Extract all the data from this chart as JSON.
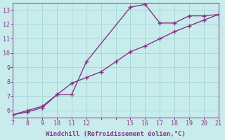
{
  "line1_x": [
    7,
    8,
    9,
    10,
    11,
    12,
    15,
    16,
    17,
    18,
    19,
    20,
    21
  ],
  "line1_y": [
    5.7,
    6.0,
    6.3,
    7.1,
    7.1,
    9.4,
    13.2,
    13.4,
    12.1,
    12.1,
    12.6,
    12.6,
    12.7
  ],
  "line2_x": [
    7,
    8,
    9,
    10,
    11,
    12,
    13,
    14,
    15,
    16,
    17,
    18,
    19,
    20,
    21
  ],
  "line2_y": [
    5.7,
    5.9,
    6.2,
    7.1,
    7.9,
    8.3,
    8.7,
    9.4,
    10.1,
    10.5,
    11.0,
    11.5,
    11.9,
    12.3,
    12.7
  ],
  "line_color": "#883388",
  "background_color": "#c8ecec",
  "grid_color": "#a8d8d8",
  "xlabel": "Windchill (Refroidissement éolien,°C)",
  "xlabel_color": "#883388",
  "tick_color": "#883388",
  "xlim": [
    7,
    21
  ],
  "ylim": [
    5.5,
    13.5
  ],
  "xticks_minor": [
    7,
    8,
    9,
    10,
    11,
    12,
    13,
    14,
    15,
    16,
    17,
    18,
    19,
    20,
    21
  ],
  "xticks_label": [
    7,
    8,
    9,
    10,
    11,
    12,
    15,
    16,
    17,
    18,
    19,
    20,
    21
  ],
  "yticks": [
    6,
    7,
    8,
    9,
    10,
    11,
    12,
    13
  ],
  "marker_size": 2.5,
  "linewidth": 1.0,
  "xlabel_fontsize": 6.5,
  "tick_fontsize": 6.0
}
